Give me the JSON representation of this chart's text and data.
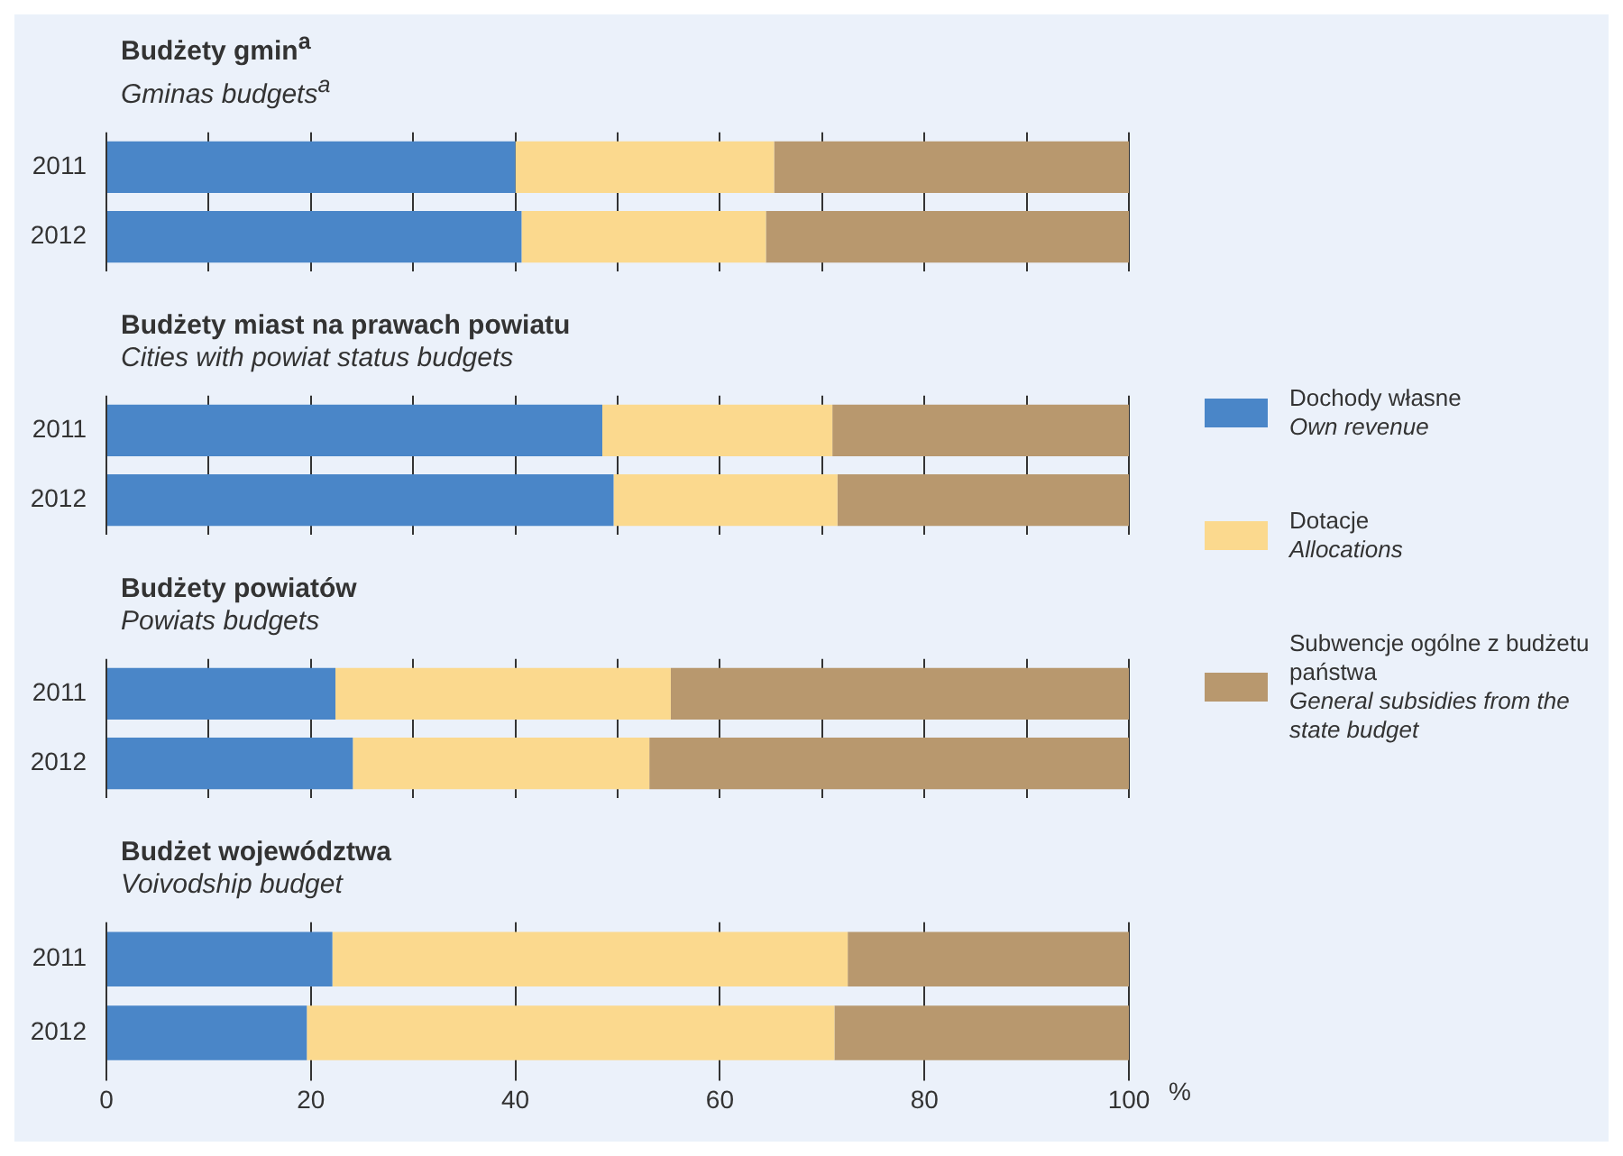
{
  "chart_data": [
    {
      "type": "bar",
      "orientation": "horizontal",
      "stacked": true,
      "title": "Budżety gmin$^{a}$",
      "subtitle": "Gminas budgets$^{a}$",
      "categories": [
        "2011",
        "2012"
      ],
      "series": [
        {
          "name": "Dochody własne\nOwn revenue",
          "color": "#4a86c8",
          "values": [
            40.0,
            40.6
          ]
        },
        {
          "name": "Dotacje\nAllocations",
          "color": "#fbd98e",
          "values": [
            25.3,
            23.9
          ]
        },
        {
          "name": "Subwencje ogólne z budżetu państwa\nGeneral subsidies from the state budget",
          "color": "#b8986e",
          "values": [
            34.7,
            35.5
          ]
        }
      ],
      "xlim": [
        0,
        100
      ],
      "grid": "x",
      "tick_labels": "y",
      "legend": "right"
    },
    {
      "type": "bar",
      "orientation": "horizontal",
      "stacked": true,
      "title": "Budżety miast na prawach powiatu",
      "subtitle": "Cities with powiat status budgets",
      "categories": [
        "2011",
        "2012"
      ],
      "series": [
        {
          "color": "#4a86c8",
          "values": [
            48.5,
            49.6
          ]
        },
        {
          "color": "#fbd98e",
          "values": [
            22.5,
            21.9
          ]
        },
        {
          "color": "#b8986e",
          "values": [
            29.0,
            28.5
          ]
        }
      ],
      "xlim": [
        0,
        100
      ],
      "grid": "x",
      "tick_labels": "y"
    },
    {
      "type": "bar",
      "orientation": "horizontal",
      "stacked": true,
      "title": "Budżety powiatów",
      "subtitle": "Powiats budgets",
      "categories": [
        "2011",
        "2012"
      ],
      "series": [
        {
          "color": "#4a86c8",
          "values": [
            22.4,
            24.1
          ]
        },
        {
          "color": "#fbd98e",
          "values": [
            32.8,
            29.0
          ]
        },
        {
          "color": "#b8986e",
          "values": [
            44.8,
            46.9
          ]
        }
      ],
      "xlim": [
        0,
        100
      ],
      "grid": "x",
      "tick_labels": "y"
    },
    {
      "type": "bar",
      "orientation": "horizontal",
      "stacked": true,
      "title": "Budżet województwa",
      "subtitle": "Voivodship budget",
      "xlabel": "%",
      "categories": [
        "2011",
        "2012"
      ],
      "series": [
        {
          "color": "#4a86c8",
          "values": [
            22.1,
            19.6
          ]
        },
        {
          "color": "#fbd98e",
          "values": [
            50.4,
            51.6
          ]
        },
        {
          "color": "#b8986e",
          "values": [
            27.5,
            28.8
          ]
        }
      ],
      "xlim": [
        0,
        100
      ],
      "xticks": [
        0,
        20,
        40,
        60,
        80,
        100
      ],
      "grid": "x"
    }
  ]
}
